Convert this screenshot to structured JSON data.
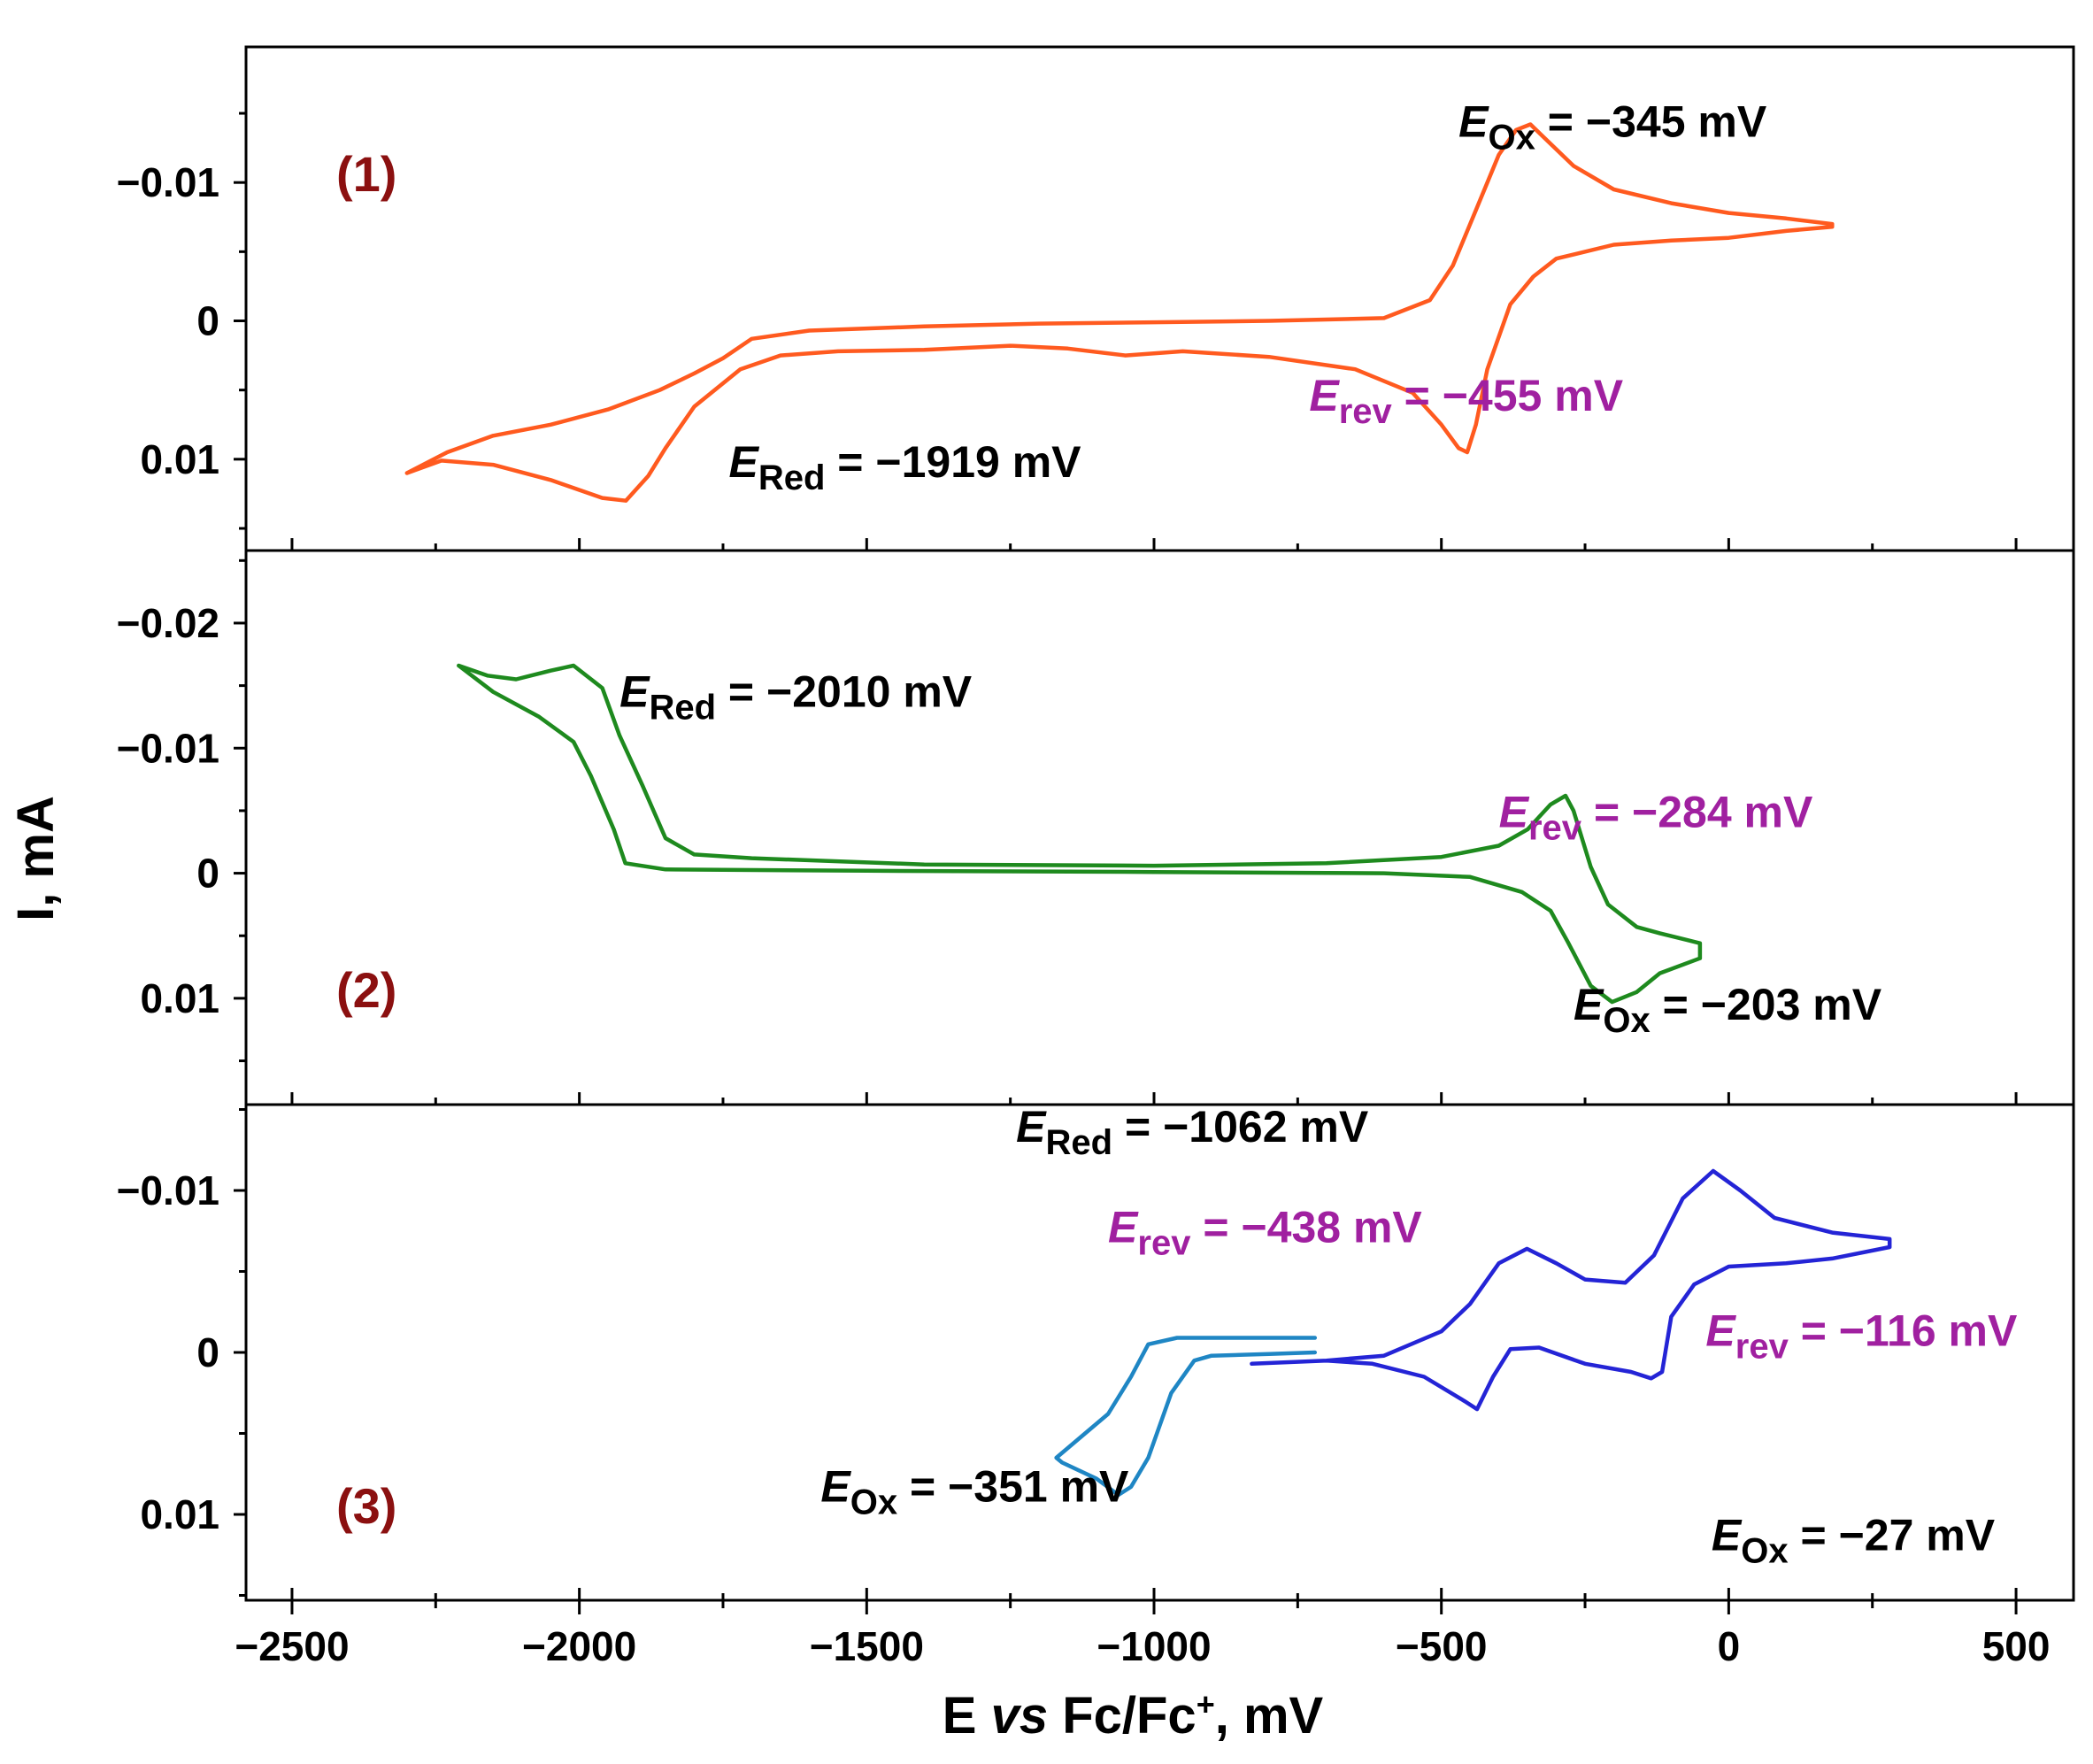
{
  "chart_data": {
    "type": "line",
    "xlabel_parts": {
      "pre": "E ",
      "italic": "vs",
      "post": " Fc/Fc",
      "sup": "+",
      "tail": ", mV"
    },
    "ylabel": "I, mA",
    "xlim": [
      -2580,
      600
    ],
    "xticks": [
      -2500,
      -2000,
      -1500,
      -1000,
      -500,
      0,
      500
    ],
    "xtick_labels": [
      "−2500",
      "−2000",
      "−1500",
      "−1000",
      "−500",
      "0",
      "500"
    ],
    "colors": {
      "panel1": "#ff5a1f",
      "panel2": "#1e8a1e",
      "panel3_main": "#2424d6",
      "panel3_light": "#1f86c4",
      "panel_label": "#8b1010",
      "rev_label": "#a020a0"
    },
    "panels": [
      {
        "label": "(1)",
        "ylim": [
          0.0166,
          -0.0198
        ],
        "yticks": [
          -0.01,
          0,
          0.01
        ],
        "ytick_labels": [
          "−0.01",
          "0",
          "0.01"
        ],
        "series": [
          {
            "name": "CV (1)",
            "color_key": "panel1",
            "points": [
              [
                -2300,
                0.011
              ],
              [
                -2230,
                0.0095
              ],
              [
                -2150,
                0.0083
              ],
              [
                -2050,
                0.0075
              ],
              [
                -1950,
                0.0064
              ],
              [
                -1860,
                0.005
              ],
              [
                -1800,
                0.0038
              ],
              [
                -1750,
                0.0027
              ],
              [
                -1700,
                0.0013
              ],
              [
                -1600,
                0.0007
              ],
              [
                -1400,
                0.0004
              ],
              [
                -1200,
                0.0002
              ],
              [
                -1000,
                0.0001
              ],
              [
                -800,
                0
              ],
              [
                -600,
                -0.0002
              ],
              [
                -520,
                -0.0015
              ],
              [
                -480,
                -0.004
              ],
              [
                -440,
                -0.008
              ],
              [
                -400,
                -0.012
              ],
              [
                -370,
                -0.0138
              ],
              [
                -345,
                -0.0142
              ],
              [
                -320,
                -0.0132
              ],
              [
                -270,
                -0.0112
              ],
              [
                -200,
                -0.0095
              ],
              [
                -100,
                -0.0085
              ],
              [
                0,
                -0.0078
              ],
              [
                100,
                -0.0074
              ],
              [
                180,
                -0.007
              ],
              [
                180,
                -0.0068
              ],
              [
                100,
                -0.0065
              ],
              [
                0,
                -0.006
              ],
              [
                -100,
                -0.0058
              ],
              [
                -200,
                -0.0055
              ],
              [
                -300,
                -0.0045
              ],
              [
                -340,
                -0.0032
              ],
              [
                -380,
                -0.0012
              ],
              [
                -420,
                0.0035
              ],
              [
                -440,
                0.0075
              ],
              [
                -455,
                0.0095
              ],
              [
                -470,
                0.0092
              ],
              [
                -500,
                0.0075
              ],
              [
                -550,
                0.0052
              ],
              [
                -650,
                0.0035
              ],
              [
                -800,
                0.0026
              ],
              [
                -950,
                0.0022
              ],
              [
                -1050,
                0.0025
              ],
              [
                -1150,
                0.002
              ],
              [
                -1250,
                0.0018
              ],
              [
                -1400,
                0.0021
              ],
              [
                -1550,
                0.0022
              ],
              [
                -1650,
                0.0025
              ],
              [
                -1720,
                0.0035
              ],
              [
                -1800,
                0.0062
              ],
              [
                -1850,
                0.0092
              ],
              [
                -1880,
                0.0112
              ],
              [
                -1919,
                0.013
              ],
              [
                -1960,
                0.0128
              ],
              [
                -2050,
                0.0115
              ],
              [
                -2150,
                0.0104
              ],
              [
                -2240,
                0.0101
              ],
              [
                -2300,
                0.011
              ]
            ]
          }
        ],
        "annotations": [
          {
            "sym": "E",
            "sub": "Ox",
            "text": " = −345 mV",
            "color_key": "black",
            "pos": [
              -470,
              -0.0133
            ]
          },
          {
            "sym": "E",
            "sub": "rev",
            "text": " = −455 mV",
            "color_key": "rev_label",
            "pos": [
              -730,
              0.0065
            ]
          },
          {
            "sym": "E",
            "sub": "Red",
            "text": " = −1919 mV",
            "color_key": "black",
            "pos": [
              -1740,
              0.0113
            ]
          }
        ]
      },
      {
        "label": "(2)",
        "ylim": [
          0.0185,
          -0.0258
        ],
        "yticks": [
          0.01,
          0,
          -0.01,
          -0.02
        ],
        "ytick_labels": [
          "0.01",
          "0",
          "−0.01",
          "−0.02"
        ],
        "series": [
          {
            "name": "CV (2)",
            "color_key": "panel2",
            "points": [
              [
                -2210,
                -0.0166
              ],
              [
                -2150,
                -0.0145
              ],
              [
                -2070,
                -0.0125
              ],
              [
                -2010,
                -0.0105
              ],
              [
                -1980,
                -0.0078
              ],
              [
                -1940,
                -0.0035
              ],
              [
                -1920,
                -0.0008
              ],
              [
                -1850,
                -0.0003
              ],
              [
                -1500,
                -0.0002
              ],
              [
                -1000,
                -0.0001
              ],
              [
                -600,
                0
              ],
              [
                -450,
                0.0003
              ],
              [
                -360,
                0.0015
              ],
              [
                -310,
                0.003
              ],
              [
                -280,
                0.0055
              ],
              [
                -240,
                0.009
              ],
              [
                -203,
                0.0103
              ],
              [
                -160,
                0.0095
              ],
              [
                -120,
                0.008
              ],
              [
                -50,
                0.0068
              ],
              [
                -50,
                0.0056
              ],
              [
                -120,
                0.0048
              ],
              [
                -160,
                0.0043
              ],
              [
                -210,
                0.0025
              ],
              [
                -240,
                -0.0005
              ],
              [
                -270,
                -0.005
              ],
              [
                -284,
                -0.0062
              ],
              [
                -310,
                -0.0055
              ],
              [
                -350,
                -0.0035
              ],
              [
                -400,
                -0.0022
              ],
              [
                -500,
                -0.0013
              ],
              [
                -700,
                -0.0008
              ],
              [
                -1000,
                -0.0006
              ],
              [
                -1400,
                -0.0007
              ],
              [
                -1700,
                -0.0012
              ],
              [
                -1800,
                -0.0015
              ],
              [
                -1850,
                -0.0028
              ],
              [
                -1890,
                -0.007
              ],
              [
                -1930,
                -0.011
              ],
              [
                -1960,
                -0.0148
              ],
              [
                -2010,
                -0.0166
              ],
              [
                -2050,
                -0.0162
              ],
              [
                -2110,
                -0.0155
              ],
              [
                -2160,
                -0.0158
              ],
              [
                -2210,
                -0.0166
              ]
            ]
          }
        ],
        "annotations": [
          {
            "sym": "E",
            "sub": "Ox",
            "text": " = −203 mV",
            "color_key": "black",
            "pos": [
              -270,
              0.0117
            ]
          },
          {
            "sym": "E",
            "sub": "rev",
            "text": " = −284 mV",
            "color_key": "rev_label",
            "pos": [
              -400,
              -0.0037
            ]
          },
          {
            "sym": "E",
            "sub": "Red",
            "text": " = −2010 mV",
            "color_key": "black",
            "pos": [
              -1930,
              -0.0133
            ]
          }
        ]
      },
      {
        "label": "(3)",
        "ylim": [
          0.0153,
          -0.0153
        ],
        "yticks": [
          0.01,
          0,
          -0.01
        ],
        "ytick_labels": [
          "0.01",
          "0",
          "−0.01"
        ],
        "series": [
          {
            "name": "CV (3) outer",
            "color_key": "panel3_main",
            "points": [
              [
                -830,
                0.0007
              ],
              [
                -700,
                0.0005
              ],
              [
                -600,
                0.0002
              ],
              [
                -500,
                -0.0013
              ],
              [
                -450,
                -0.003
              ],
              [
                -400,
                -0.0055
              ],
              [
                -351,
                -0.0064
              ],
              [
                -300,
                -0.0055
              ],
              [
                -250,
                -0.0045
              ],
              [
                -180,
                -0.0043
              ],
              [
                -130,
                -0.006
              ],
              [
                -80,
                -0.0095
              ],
              [
                -27,
                -0.0112
              ],
              [
                20,
                -0.01
              ],
              [
                80,
                -0.0083
              ],
              [
                180,
                -0.0074
              ],
              [
                280,
                -0.007
              ],
              [
                280,
                -0.0065
              ],
              [
                180,
                -0.0058
              ],
              [
                100,
                -0.0055
              ],
              [
                0,
                -0.0053
              ],
              [
                -60,
                -0.0042
              ],
              [
                -100,
                -0.0022
              ],
              [
                -116,
                0.0012
              ],
              [
                -135,
                0.0016
              ],
              [
                -170,
                0.0012
              ],
              [
                -250,
                0.0007
              ],
              [
                -330,
                -0.0003
              ],
              [
                -380,
                -0.0002
              ],
              [
                -410,
                0.0015
              ],
              [
                -438,
                0.0035
              ],
              [
                -460,
                0.003
              ],
              [
                -530,
                0.0015
              ],
              [
                -620,
                0.0007
              ],
              [
                -700,
                0.0005
              ],
              [
                -830,
                0.0007
              ]
            ]
          },
          {
            "name": "CV (3) inner",
            "color_key": "panel3_light",
            "points": [
              [
                -720,
                -0.0009
              ],
              [
                -800,
                -0.0009
              ],
              [
                -960,
                -0.0009
              ],
              [
                -1010,
                -0.0005
              ],
              [
                -1040,
                0.0015
              ],
              [
                -1080,
                0.0038
              ],
              [
                -1120,
                0.005
              ],
              [
                -1170,
                0.0065
              ],
              [
                -1160,
                0.0068
              ],
              [
                -1100,
                0.0078
              ],
              [
                -1062,
                0.0088
              ],
              [
                -1040,
                0.0083
              ],
              [
                -1010,
                0.0065
              ],
              [
                -970,
                0.0025
              ],
              [
                -930,
                0.0005
              ],
              [
                -900,
                0.0002
              ],
              [
                -800,
                0.0001
              ],
              [
                -720,
                0
              ]
            ]
          }
        ],
        "annotations": [
          {
            "sym": "E",
            "sub": "Ox",
            "text": " = −27 mV",
            "color_key": "black",
            "pos": [
              -30,
              0.0122
            ]
          },
          {
            "sym": "E",
            "sub": "Ox",
            "text": " = −351 mV",
            "color_key": "black",
            "pos": [
              -1580,
              0.0092
            ]
          },
          {
            "sym": "E",
            "sub": "rev",
            "text": " = −116 mV",
            "color_key": "rev_label",
            "pos": [
              -40,
              -0.0004
            ]
          },
          {
            "sym": "E",
            "sub": "rev",
            "text": " = −438 mV",
            "color_key": "rev_label",
            "pos": [
              -1080,
              -0.0068
            ]
          },
          {
            "sym": "E",
            "sub": "Red",
            "text": " = −1062 mV",
            "color_key": "black",
            "pos": [
              -1240,
              -0.013
            ]
          }
        ]
      }
    ]
  }
}
